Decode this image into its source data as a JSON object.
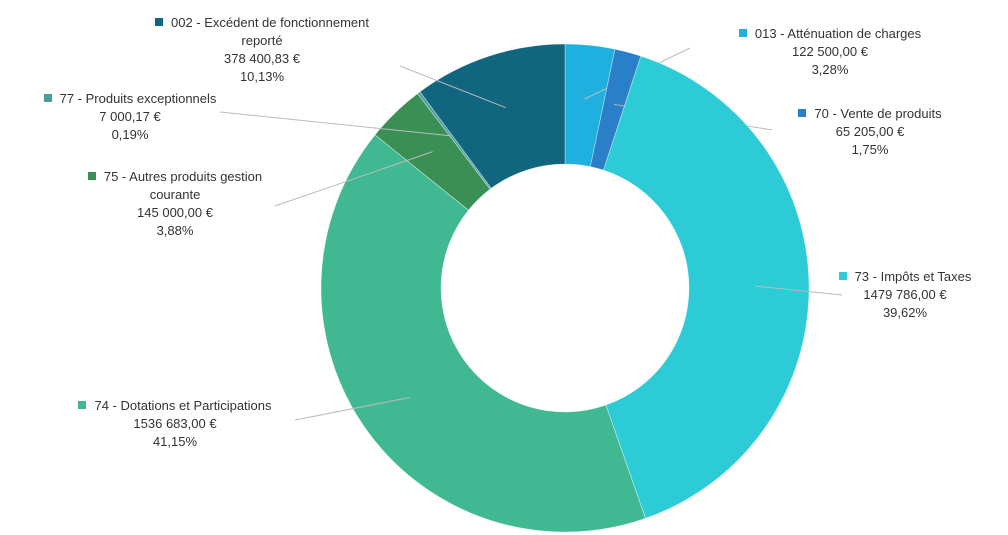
{
  "chart_data": {
    "type": "donut",
    "categories": [
      "013 - Atténuation de charges",
      "70 - Vente de produits",
      "73 - Impôts et Taxes",
      "74 - Dotations et Participations",
      "75 - Autres produits gestion courante",
      "77 - Produits exceptionnels",
      "002 - Excédent de fonctionnement reporté"
    ],
    "values": [
      3.28,
      1.75,
      39.62,
      41.15,
      3.88,
      0.19,
      10.13
    ],
    "value_labels": [
      "3,28%",
      "1,75%",
      "39,62%",
      "41,15%",
      "3,88%",
      "0,19%",
      "10,13%"
    ],
    "amounts": [
      122500,
      65205,
      1479786,
      1536683,
      145000,
      7000.17,
      378400.83
    ],
    "amount_labels": [
      "122 500,00 €",
      "65 205,00 €",
      "1479 786,00 €",
      "1536 683,00 €",
      "145 000,00 €",
      "7 000,17 €",
      "378 400,83 €"
    ],
    "colors": [
      "#1fb0e0",
      "#2a7fc9",
      "#2ccbd6",
      "#40b993",
      "#3a8f55",
      "#4a9e9a",
      "#10667f"
    ]
  }
}
